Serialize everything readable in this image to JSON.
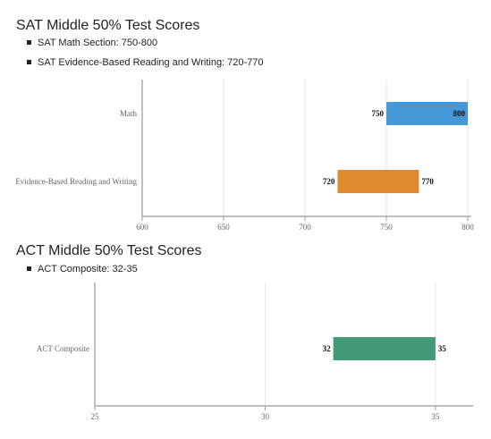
{
  "sat": {
    "title": "SAT Middle 50% Test Scores",
    "bullets": [
      "SAT Math Section: 750-800",
      "SAT Evidence-Based Reading and Writing: 720-770"
    ]
  },
  "act": {
    "title": "ACT Middle 50% Test Scores",
    "bullets": [
      "ACT Composite: 32-35"
    ]
  },
  "chart_data": [
    {
      "type": "bar",
      "orientation": "horizontal-range",
      "categories": [
        "Math",
        "Evidence-Based Reading and Writing"
      ],
      "ranges": [
        [
          750,
          800
        ],
        [
          720,
          770
        ]
      ],
      "colors": [
        "#4599d6",
        "#e08a30"
      ],
      "xlim": [
        600,
        800
      ],
      "xticks": [
        600,
        650,
        700,
        750,
        800
      ],
      "grid": true
    },
    {
      "type": "bar",
      "orientation": "horizontal-range",
      "categories": [
        "ACT Composite"
      ],
      "ranges": [
        [
          32,
          35
        ]
      ],
      "colors": [
        "#449a76"
      ],
      "xlim": [
        25,
        36
      ],
      "xticks": [
        25,
        30,
        35
      ],
      "grid": true
    }
  ]
}
